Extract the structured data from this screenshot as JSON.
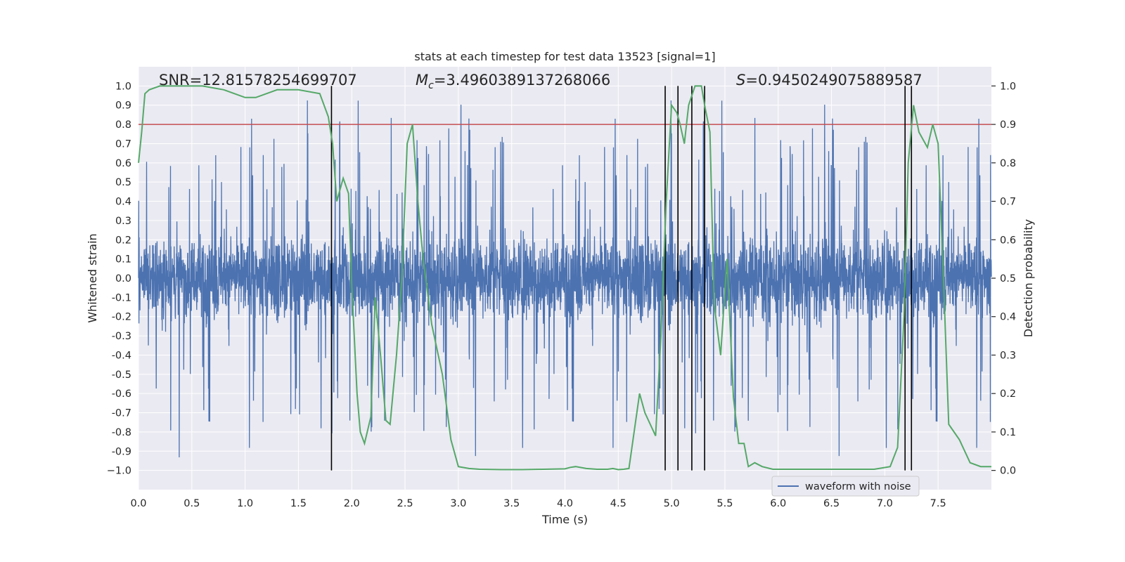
{
  "chart_data": {
    "type": "line",
    "title": "stats at each timestep for test data 13523 [signal=1]",
    "xlabel": "Time (s)",
    "ylabel": "Whitened strain",
    "y2label": "Detection probability",
    "xlim": [
      0,
      8
    ],
    "ylim": [
      -1.1,
      1.1
    ],
    "y2lim": [
      -0.05,
      1.05
    ],
    "xticks": [
      0.0,
      0.5,
      1.0,
      1.5,
      2.0,
      2.5,
      3.0,
      3.5,
      4.0,
      4.5,
      5.0,
      5.5,
      6.0,
      6.5,
      7.0,
      7.5
    ],
    "xtick_labels": [
      "0.0",
      "0.5",
      "1.0",
      "1.5",
      "2.0",
      "2.5",
      "3.0",
      "3.5",
      "4.0",
      "4.5",
      "5.0",
      "5.5",
      "6.0",
      "6.5",
      "7.0",
      "7.5"
    ],
    "yticks": [
      1.0,
      0.9,
      0.8,
      0.7,
      0.6,
      0.5,
      0.4,
      0.3,
      0.2,
      0.1,
      0.0,
      -0.1,
      -0.2,
      -0.3,
      -0.4,
      -0.5,
      -0.6,
      -0.7,
      -0.8,
      -0.9,
      -1.0
    ],
    "ytick_labels": [
      "1.0",
      "0.9",
      "0.8",
      "0.7",
      "0.6",
      "0.5",
      "0.4",
      "0.3",
      "0.2",
      "0.1",
      "0.0",
      "-0.1",
      "-0.2",
      "-0.3",
      "-0.4",
      "-0.5",
      "-0.6",
      "-0.7",
      "-0.8",
      "-0.9",
      "−1.0"
    ],
    "y2ticks": [
      1.0,
      0.9,
      0.8,
      0.7,
      0.6,
      0.5,
      0.4,
      0.3,
      0.2,
      0.1,
      0.0
    ],
    "y2tick_labels": [
      "1.0",
      "0.9",
      "0.8",
      "0.7",
      "0.6",
      "0.5",
      "0.4",
      "0.3",
      "0.2",
      "0.1",
      "0.0"
    ],
    "annotations": {
      "snr": "SNR=12.81578254699707",
      "mc_prefix": "M",
      "mc_sub": "c",
      "mc_value": "=3.4960389137268066",
      "s_prefix": "S",
      "s_value": "=0.9450249075889587"
    },
    "threshold": {
      "value": 0.8,
      "color": "#c44e52"
    },
    "vlines": [
      1.81,
      4.94,
      5.06,
      5.19,
      5.31,
      7.19,
      7.25
    ],
    "series": [
      {
        "name": "waveform with noise",
        "color": "#4c72b0",
        "axis": "left",
        "kind": "noise",
        "n_samples": 4000,
        "band": 0.22,
        "spike_max": 1.0
      },
      {
        "name": "detection probability",
        "color": "#55a868",
        "axis": "right",
        "x": [
          0.0,
          0.03,
          0.06,
          0.1,
          0.2,
          0.4,
          0.6,
          0.8,
          0.9,
          1.0,
          1.1,
          1.2,
          1.3,
          1.5,
          1.7,
          1.78,
          1.82,
          1.86,
          1.92,
          1.97,
          2.0,
          2.05,
          2.08,
          2.12,
          2.18,
          2.22,
          2.27,
          2.32,
          2.36,
          2.42,
          2.47,
          2.52,
          2.57,
          2.62,
          2.67,
          2.75,
          2.85,
          2.93,
          3.0,
          3.1,
          3.2,
          3.4,
          3.6,
          3.8,
          4.0,
          4.05,
          4.1,
          4.2,
          4.3,
          4.4,
          4.45,
          4.5,
          4.55,
          4.6,
          4.7,
          4.75,
          4.8,
          4.85,
          4.9,
          4.95,
          5.0,
          5.05,
          5.08,
          5.12,
          5.16,
          5.22,
          5.28,
          5.31,
          5.36,
          5.4,
          5.46,
          5.52,
          5.58,
          5.63,
          5.68,
          5.72,
          5.78,
          5.85,
          5.95,
          6.1,
          6.3,
          6.5,
          6.7,
          6.9,
          7.05,
          7.12,
          7.18,
          7.22,
          7.27,
          7.32,
          7.4,
          7.45,
          7.5,
          7.55,
          7.6,
          7.7,
          7.8,
          7.9,
          8.0
        ],
        "y": [
          0.8,
          0.88,
          0.98,
          0.99,
          1.0,
          1.0,
          1.0,
          0.99,
          0.98,
          0.97,
          0.97,
          0.98,
          0.99,
          0.99,
          0.98,
          0.92,
          0.85,
          0.7,
          0.76,
          0.72,
          0.48,
          0.2,
          0.1,
          0.07,
          0.14,
          0.45,
          0.3,
          0.13,
          0.12,
          0.3,
          0.5,
          0.85,
          0.9,
          0.7,
          0.55,
          0.38,
          0.25,
          0.08,
          0.01,
          0.005,
          0.003,
          0.002,
          0.002,
          0.003,
          0.004,
          0.008,
          0.01,
          0.005,
          0.003,
          0.003,
          0.005,
          0.002,
          0.003,
          0.005,
          0.2,
          0.15,
          0.12,
          0.09,
          0.35,
          0.7,
          0.95,
          0.93,
          0.9,
          0.85,
          0.95,
          1.0,
          1.0,
          0.95,
          0.88,
          0.43,
          0.3,
          0.55,
          0.19,
          0.07,
          0.07,
          0.01,
          0.02,
          0.01,
          0.003,
          0.003,
          0.003,
          0.003,
          0.003,
          0.003,
          0.01,
          0.06,
          0.4,
          0.8,
          0.95,
          0.88,
          0.84,
          0.9,
          0.85,
          0.5,
          0.12,
          0.08,
          0.02,
          0.01,
          0.01
        ]
      }
    ],
    "legend": {
      "position": "bottom-right",
      "label": "waveform with noise"
    }
  }
}
